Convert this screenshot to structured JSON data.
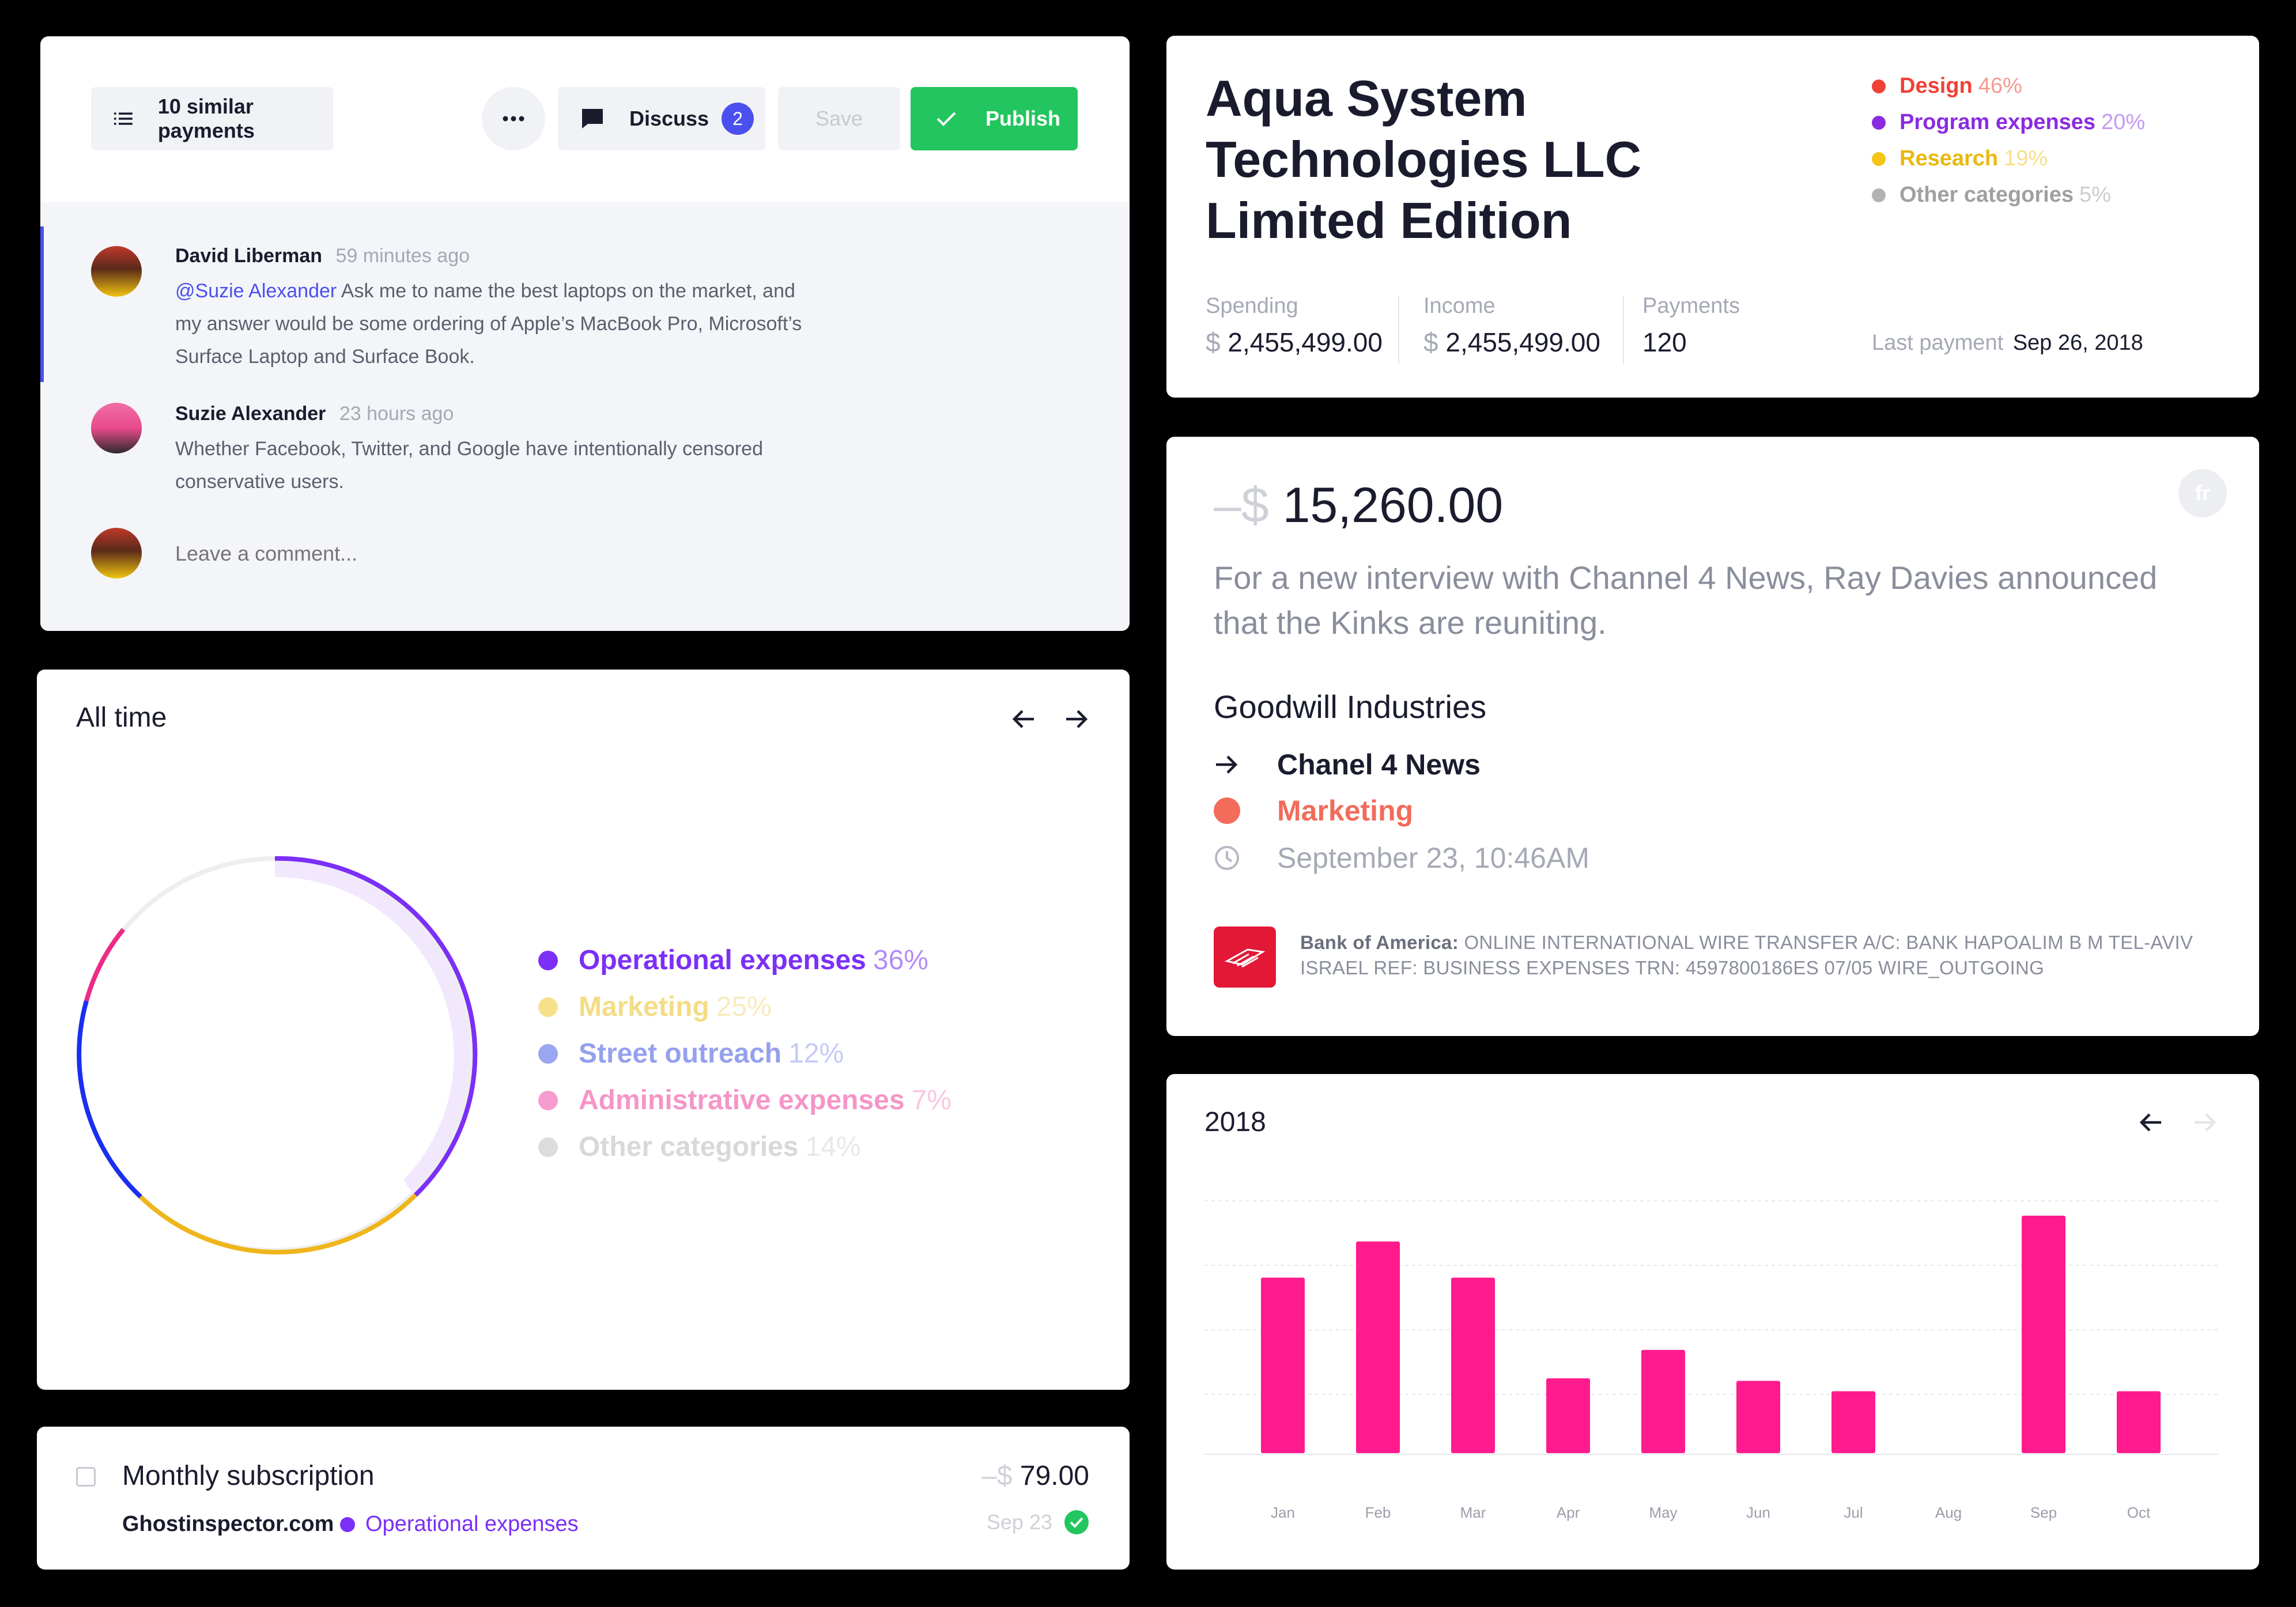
{
  "comments_card": {
    "similar_payments_label": "10 similar payments",
    "discuss_label": "Discuss",
    "discuss_count": "2",
    "save_label": "Save",
    "publish_label": "Publish",
    "comments": [
      {
        "author": "David Liberman",
        "time": "59 minutes ago",
        "mention": "@Suzie Alexander",
        "line1": " Ask me to name the best laptops on the market, and",
        "line2": "my answer would be some ordering of Apple’s MacBook Pro, Microsoft’s",
        "line3": "Surface Laptop and Surface Book."
      },
      {
        "author": "Suzie Alexander",
        "time": "23 hours ago",
        "line1": "Whether Facebook, Twitter, and Google have intentionally censored",
        "line2": "conservative users."
      }
    ],
    "comment_placeholder": "Leave a comment..."
  },
  "company_card": {
    "name_line1": "Aqua System",
    "name_line2": "Technologies LLC",
    "name_line3": "Limited Edition",
    "legend": [
      {
        "label": "Design",
        "pct": "46%",
        "color": "#ef4136"
      },
      {
        "label": "Program expenses",
        "pct": "20%",
        "color": "#8a2be2"
      },
      {
        "label": "Research",
        "pct": "19%",
        "color": "#f5c518"
      },
      {
        "label": "Other categories",
        "pct": "5%",
        "color": "#b3b3b3"
      }
    ],
    "stats": [
      {
        "label": "Spending",
        "currency": "$",
        "value": "2,455,499.00"
      },
      {
        "label": "Income",
        "currency": "$",
        "value": "2,455,499.00"
      },
      {
        "label": "Payments",
        "currency": "",
        "value": "120"
      }
    ],
    "last_payment_label": "Last payment",
    "last_payment_value": "Sep 26, 2018"
  },
  "transaction_card": {
    "currency": "–$",
    "amount": "15,260.00",
    "description_line1": "For a new interview with Channel 4 News, Ray Davies announced",
    "description_line2": "that the Kinks are reuniting.",
    "merchant": "Goodwill Industries",
    "destination": "Chanel 4 News",
    "category": "Marketing",
    "category_color": "#f26b5b",
    "datetime": "September 23, 10:46AM",
    "avatar_initials": "fr",
    "bank_name": "Bank of America:",
    "bank_line1": " ONLINE INTERNATIONAL WIRE TRANSFER A/C: BANK HAPOALIM B M TEL-AVIV",
    "bank_line2": "ISRAEL REF: BUSINESS EXPENSES TRN: 4597800186ES 07/05 WIRE_OUTGOING"
  },
  "alltime_card": {
    "title": "All time",
    "legend": [
      {
        "label": "Operational expenses",
        "pct": "36%",
        "color": "#7b2ff7",
        "dim": false
      },
      {
        "label": "Marketing",
        "pct": "25%",
        "color": "#f7e08a",
        "dim": true
      },
      {
        "label": "Street outreach",
        "pct": "12%",
        "color": "#9aa6f2",
        "dim": true
      },
      {
        "label": "Administrative expenses",
        "pct": "7%",
        "color": "#f79ccf",
        "dim": true
      },
      {
        "label": "Other categories",
        "pct": "14%",
        "color": "#dcdcdc",
        "dim": true
      }
    ]
  },
  "subscription_card": {
    "title": "Monthly subscription",
    "currency": "–$",
    "amount": "79.00",
    "merchant": "Ghostinspector.com",
    "category": "Operational expenses",
    "category_color": "#7b2ff7",
    "date": "Sep 23"
  },
  "bar_card": {
    "title": "2018"
  },
  "chart_data": {
    "type": "bar",
    "title": "2018",
    "categories": [
      "Jan",
      "Feb",
      "Mar",
      "Apr",
      "May",
      "Jun",
      "Jul",
      "Aug",
      "Sep",
      "Oct"
    ],
    "values": [
      68,
      82,
      68,
      29,
      40,
      28,
      24,
      0,
      92,
      24
    ],
    "ylim": [
      0,
      100
    ],
    "grid": true,
    "bar_color": "#ff1b8d"
  }
}
